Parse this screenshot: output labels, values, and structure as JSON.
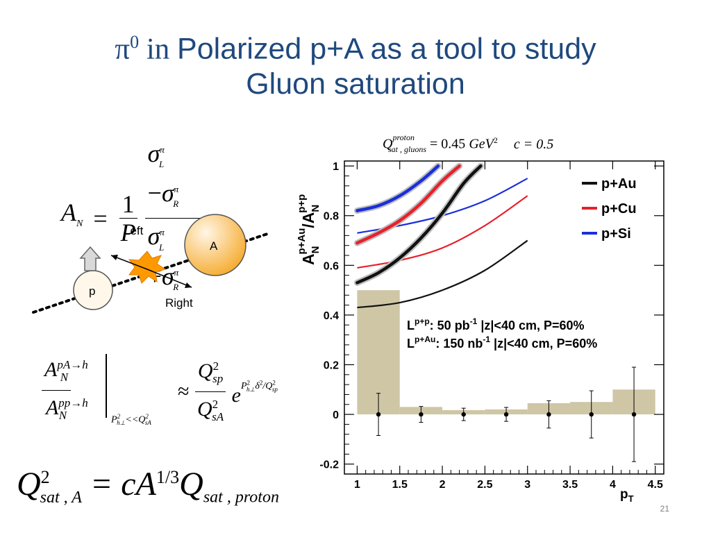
{
  "slide": {
    "title_pi": "π",
    "title_sup": "0",
    "title_in": " in ",
    "title_line1": "Polarized p+A as a tool to study",
    "title_line2": "Gluon saturation",
    "page_number": "21"
  },
  "equations": {
    "an_lhs": "A",
    "an_lhs_sub": "N",
    "an_equals": "=",
    "an_one": "1",
    "an_P": "P",
    "sigma": "σ",
    "sup_pi": "π",
    "sub_L": "L",
    "sub_R": "R",
    "minus": "−",
    "plus": "+",
    "ratio_A": "A",
    "ratio_top_sup": "pA→h",
    "ratio_bot_sup": "pp→h",
    "ratio_sub": "N",
    "ratio_cond": "P",
    "ratio_cond_sub": "h⊥",
    "ratio_cond_sup": "2",
    "ratio_cond_rest": "<<Q",
    "ratio_cond_rest_sub": "sA",
    "ratio_cond_rest_sup": "2",
    "approx": "≈",
    "Q": "Q",
    "sub_sp": "sp",
    "sub_sA": "sA",
    "sq": "2",
    "exp_e": "e",
    "exp_text": "P",
    "exp_sub": "h⊥",
    "exp_sup": "2",
    "exp_delta": "δ",
    "exp_delta_sup": "2",
    "exp_div": "/Q",
    "exp_div_sub": "sp",
    "exp_div_sup": "2",
    "qsat_Q": "Q",
    "qsat_sub": "sat , A",
    "qsat_sup": "2",
    "qsat_eq": "= cA",
    "qsat_pow": "1/3",
    "qsat_Q2": "Q",
    "qsat_sub2": "sat , proton",
    "top_Q": "Q",
    "top_sup": "proton",
    "top_sub": "sat , gluons",
    "top_val": "= 0.45",
    "top_unit": "GeV",
    "top_unit_sup": "2",
    "top_c": "c = 0.5"
  },
  "diagram": {
    "left_label": "Left",
    "right_label": "Right",
    "nucleus_label": "A",
    "proton_label": "p",
    "nucleus_color": "#f5a623",
    "proton_fill": "#fff7ea",
    "flash_color": "#ff9900"
  },
  "chart_data": {
    "type": "line",
    "xlabel": "p",
    "xlabel_sub": "T",
    "ylabel_parts": [
      "A",
      "N",
      "p+Au",
      "/A",
      "N",
      "p+p"
    ],
    "xlim": [
      0.85,
      4.6
    ],
    "ylim": [
      -0.24,
      1.02
    ],
    "xticks": [
      1,
      1.5,
      2,
      2.5,
      3,
      3.5,
      4,
      4.5
    ],
    "xtick_labels": [
      "1",
      "1.5",
      "2",
      "2.5",
      "3",
      "3.5",
      "4",
      "4.5"
    ],
    "yticks": [
      -0.2,
      0,
      0.2,
      0.4,
      0.6,
      0.8,
      1
    ],
    "ytick_labels": [
      "-0.2",
      "0",
      "0.2",
      "0.4",
      "0.6",
      "0.8",
      "1"
    ],
    "legend_position": "top-right",
    "legend": [
      {
        "name": "p+Au",
        "color": "#111111"
      },
      {
        "name": "p+Cu",
        "color": "#e8202a"
      },
      {
        "name": "p+Si",
        "color": "#1a2fd8"
      }
    ],
    "annotations": [
      {
        "main": "L",
        "sup": "p+p",
        "text": ":     50 pb",
        "sup2": "-1",
        "rest": " |z|<40 cm, P=60%"
      },
      {
        "main": "L",
        "sup": "p+Au",
        "text": ": 150 nb",
        "sup2": "-1",
        "rest": " |z|<40 cm, P=60%"
      }
    ],
    "series": [
      {
        "name": "p+Au",
        "color": "#111111",
        "style": "thin",
        "x": [
          1,
          1.5,
          2,
          2.5,
          3
        ],
        "y": [
          0.43,
          0.45,
          0.5,
          0.58,
          0.7
        ]
      },
      {
        "name": "p+Cu",
        "color": "#e8202a",
        "style": "thin",
        "x": [
          1,
          1.5,
          2,
          2.5,
          3
        ],
        "y": [
          0.59,
          0.62,
          0.67,
          0.76,
          0.88
        ]
      },
      {
        "name": "p+Si",
        "color": "#1a2fd8",
        "style": "thin",
        "x": [
          1,
          1.5,
          2,
          2.5,
          3
        ],
        "y": [
          0.73,
          0.76,
          0.8,
          0.86,
          0.95
        ]
      },
      {
        "name": "p+Au",
        "color": "#111111",
        "style": "thick",
        "x": [
          1,
          1.25,
          1.5,
          1.75,
          2,
          2.25,
          2.45
        ],
        "y": [
          0.53,
          0.57,
          0.63,
          0.71,
          0.81,
          0.93,
          1.0
        ]
      },
      {
        "name": "p+Cu",
        "color": "#e8202a",
        "style": "thick",
        "x": [
          1,
          1.25,
          1.5,
          1.75,
          2,
          2.2
        ],
        "y": [
          0.69,
          0.73,
          0.78,
          0.85,
          0.94,
          1.0
        ]
      },
      {
        "name": "p+Si",
        "color": "#1a2fd8",
        "style": "thick",
        "x": [
          1,
          1.25,
          1.5,
          1.75,
          1.95
        ],
        "y": [
          0.82,
          0.84,
          0.88,
          0.94,
          1.0
        ]
      }
    ],
    "systematics": {
      "color": "#cfc6a6",
      "bins": [
        {
          "x0": 1.0,
          "x1": 1.5,
          "y": 0.5
        },
        {
          "x0": 1.5,
          "x1": 2.0,
          "y": 0.03
        },
        {
          "x0": 2.0,
          "x1": 2.5,
          "y": 0.017
        },
        {
          "x0": 2.5,
          "x1": 3.0,
          "y": 0.02
        },
        {
          "x0": 3.0,
          "x1": 3.5,
          "y": 0.045
        },
        {
          "x0": 3.5,
          "x1": 4.0,
          "y": 0.05
        },
        {
          "x0": 4.0,
          "x1": 4.5,
          "y": 0.1
        }
      ]
    },
    "points": {
      "x": [
        1.25,
        1.75,
        2.25,
        2.75,
        3.25,
        3.75,
        4.25
      ],
      "y": [
        0,
        0,
        0,
        0,
        0,
        0,
        0
      ],
      "err": [
        0.085,
        0.032,
        0.025,
        0.028,
        0.055,
        0.095,
        0.19
      ]
    }
  }
}
